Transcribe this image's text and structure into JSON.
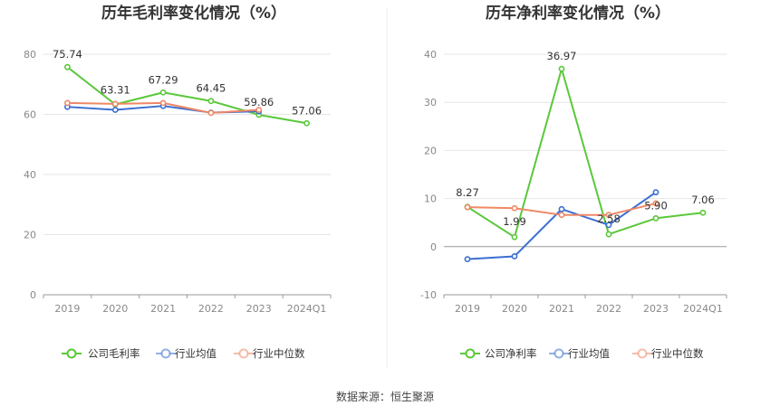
{
  "footer": "数据来源：恒生聚源",
  "chart_data": [
    {
      "type": "line",
      "title": "历年毛利率变化情况（%）",
      "categories": [
        "2019",
        "2020",
        "2021",
        "2022",
        "2023",
        "2024Q1"
      ],
      "y_ticks": [
        "0",
        "20",
        "40",
        "60",
        "80"
      ],
      "ylim": [
        0,
        80
      ],
      "legend_position": "bottom",
      "grid": true,
      "series": [
        {
          "name": "公司毛利率",
          "color": "#5ac83a",
          "values": [
            75.74,
            63.31,
            67.29,
            64.45,
            59.86,
            57.06
          ],
          "labels": [
            "75.74",
            "63.31",
            "67.29",
            "64.45",
            "59.86",
            "57.06"
          ]
        },
        {
          "name": "行业均值",
          "color": "#3a6fd1",
          "values": [
            62.5,
            61.5,
            62.8,
            60.6,
            61.0,
            null
          ],
          "labels": []
        },
        {
          "name": "行业中位数",
          "color": "#ee8866",
          "values": [
            63.8,
            63.5,
            63.8,
            60.5,
            61.5,
            null
          ],
          "labels": []
        }
      ]
    },
    {
      "type": "line",
      "title": "历年净利率变化情况（%）",
      "categories": [
        "2019",
        "2020",
        "2021",
        "2022",
        "2023",
        "2024Q1"
      ],
      "y_ticks": [
        "-10",
        "0",
        "10",
        "20",
        "30",
        "40"
      ],
      "ylim": [
        -10,
        40
      ],
      "legend_position": "bottom",
      "grid": true,
      "series": [
        {
          "name": "公司净利率",
          "color": "#5ac83a",
          "values": [
            8.27,
            1.99,
            36.97,
            2.58,
            5.9,
            7.06
          ],
          "labels": [
            "8.27",
            "1.99",
            "36.97",
            "2.58",
            "5.90",
            "7.06"
          ]
        },
        {
          "name": "行业均值",
          "color": "#3a6fd1",
          "values": [
            -2.6,
            -2.0,
            7.8,
            4.5,
            11.3,
            null
          ],
          "labels": []
        },
        {
          "name": "行业中位数",
          "color": "#ee8866",
          "values": [
            8.2,
            8.0,
            6.6,
            6.6,
            9.0,
            null
          ],
          "labels": []
        }
      ]
    }
  ]
}
